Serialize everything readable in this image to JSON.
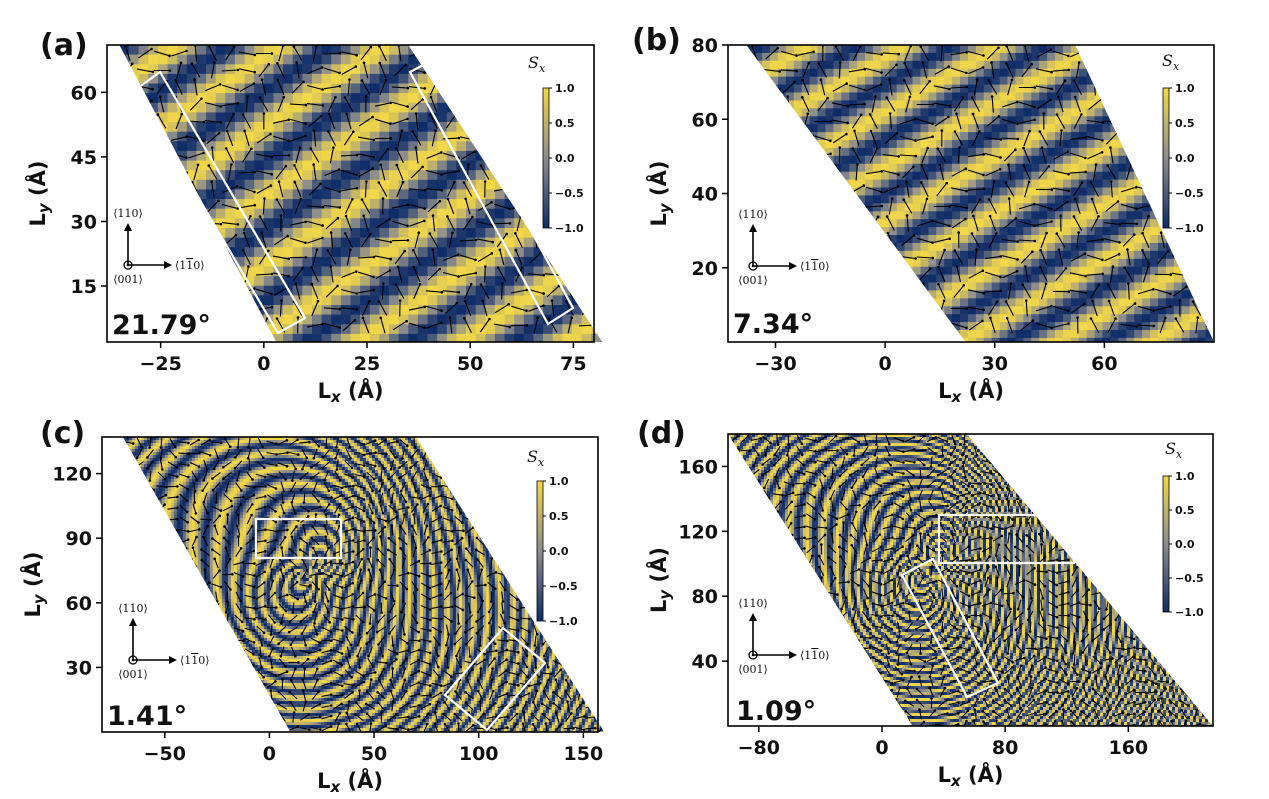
{
  "chart_data": [
    {
      "type": "heatmap",
      "panel": "(a)",
      "angle": "21.79°",
      "xlabel": "L$_x$ (Å)",
      "ylabel": "L$_y$ (Å)",
      "xlim": [
        -38,
        80
      ],
      "ylim": [
        2,
        71
      ],
      "xticks": [
        -25,
        0,
        25,
        50,
        75
      ],
      "xtick_labels": [
        "−25",
        "0",
        "25",
        "50",
        "75"
      ],
      "yticks": [
        15,
        30,
        45,
        60
      ],
      "colorbar": {
        "title": "S",
        "title_sub": "x",
        "ticks": [
          "1.0",
          "0.5",
          "0.0",
          "−0.5",
          "−1.0"
        ],
        "range": [
          -1,
          1
        ]
      },
      "directions": {
        "up": "⟨110⟩",
        "right": "⟨1",
        "right_bar": "1",
        "right_end": "0⟩",
        "origin": "⟨001⟩"
      },
      "stripe_period": 14
    },
    {
      "type": "heatmap",
      "panel": "(b)",
      "angle": "7.34°",
      "xlabel": "L$_x$ (Å)",
      "ylabel": "L$_y$ (Å)",
      "xlim": [
        -43,
        90
      ],
      "ylim": [
        0,
        80
      ],
      "xticks": [
        -30,
        0,
        30,
        60
      ],
      "xtick_labels": [
        "−30",
        "0",
        "30",
        "60"
      ],
      "yticks": [
        20,
        40,
        60,
        80
      ],
      "colorbar": {
        "title": "S",
        "title_sub": "x",
        "ticks": [
          "1.0",
          "0.5",
          "0.0",
          "−0.5",
          "−1.0"
        ],
        "range": [
          -1,
          1
        ]
      },
      "directions": {
        "up": "⟨110⟩",
        "right": "⟨1",
        "right_bar": "1",
        "right_end": "0⟩",
        "origin": "⟨001⟩"
      },
      "stripe_period": 13
    },
    {
      "type": "heatmap",
      "panel": "(c)",
      "angle": "1.41°",
      "xlabel": "L$_x$ (Å)",
      "ylabel": "L$_y$ (Å)",
      "xlim": [
        -80,
        157
      ],
      "ylim": [
        0,
        137
      ],
      "xticks": [
        -50,
        0,
        50,
        100,
        150
      ],
      "xtick_labels": [
        "−50",
        "0",
        "50",
        "100",
        "150"
      ],
      "yticks": [
        30,
        60,
        90,
        120
      ],
      "colorbar": {
        "title": "S",
        "title_sub": "x",
        "ticks": [
          "1.0",
          "0.5",
          "0.0",
          "−0.5",
          "−1.0"
        ],
        "range": [
          -1,
          1
        ]
      },
      "directions": {
        "up": "⟨110⟩",
        "right": "⟨1",
        "right_bar": "1",
        "right_end": "0⟩",
        "origin": "⟨001⟩"
      },
      "stripe_period": 6
    },
    {
      "type": "heatmap",
      "panel": "(d)",
      "angle": "1.09°",
      "xlabel": "L$_x$ (Å)",
      "ylabel": "L$_y$ (Å)",
      "xlim": [
        -100,
        215
      ],
      "ylim": [
        0,
        180
      ],
      "xticks": [
        -80,
        0,
        80,
        160
      ],
      "xtick_labels": [
        "−80",
        "0",
        "80",
        "160"
      ],
      "yticks": [
        40,
        80,
        120,
        160
      ],
      "colorbar": {
        "title": "S",
        "title_sub": "x",
        "ticks": [
          "1.0",
          "0.5",
          "0.0",
          "−0.5",
          "−1.0"
        ],
        "range": [
          -1,
          1
        ]
      },
      "directions": {
        "up": "⟨110⟩",
        "right": "⟨1",
        "right_bar": "1",
        "right_end": "0⟩",
        "origin": "⟨001⟩"
      },
      "stripe_period": 5
    }
  ],
  "colors": {
    "high": "#f2d848",
    "mid": "#8c8c8c",
    "low": "#0e2c68",
    "box": "#ffffff",
    "arrow": "#000000"
  }
}
